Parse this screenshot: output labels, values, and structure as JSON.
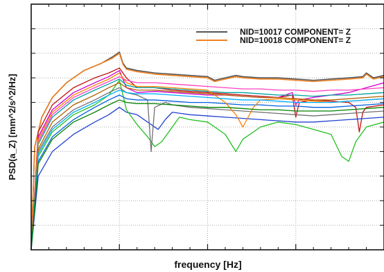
{
  "chart_data": {
    "type": "line",
    "title": "",
    "xlabel": "frequency [Hz]",
    "ylabel": "PSD(a_Z) [mm^2/s^2/Hz]",
    "xlim": [
      0,
      100
    ],
    "ylim": [
      0,
      100
    ],
    "grid": true,
    "legend_position": "top-right",
    "tick_labels_visible": false,
    "x_ticks": [
      25,
      50,
      75
    ],
    "x_minor_ticks": [
      5,
      10,
      15,
      20,
      30,
      35,
      40,
      45,
      55,
      60,
      65,
      70,
      80,
      85,
      90,
      95
    ],
    "y_ticks": [
      10,
      20,
      30,
      40,
      50,
      60,
      70,
      80,
      90
    ],
    "legend": [
      {
        "label": "NID=10017 COMPONENT=  Z",
        "color": "#555555"
      },
      {
        "label": "NID=10018 COMPONENT=  Z",
        "color": "#f08020"
      }
    ],
    "series": [
      {
        "name": "NID=10017 COMPONENT=  Z",
        "color": "#555555",
        "x": [
          0,
          1,
          3,
          6,
          10,
          15,
          20,
          23,
          25,
          26,
          27,
          30,
          35,
          40,
          45,
          50,
          52,
          55,
          58,
          60,
          65,
          70,
          75,
          80,
          85,
          90,
          94,
          95,
          97,
          100
        ],
        "y": [
          0,
          42,
          54,
          62,
          68,
          73,
          76,
          78.5,
          80.5,
          76,
          74,
          73,
          72,
          71.5,
          71,
          70.5,
          69,
          70,
          71,
          70.5,
          70,
          70,
          69.5,
          69,
          69.5,
          70,
          70.5,
          72,
          70,
          71
        ]
      },
      {
        "name": "NID=10018 COMPONENT=  Z",
        "color": "#f08020",
        "x": [
          0,
          1,
          3,
          6,
          10,
          15,
          20,
          23,
          25,
          26,
          27,
          30,
          35,
          40,
          45,
          50,
          52,
          55,
          58,
          60,
          65,
          70,
          75,
          80,
          85,
          90,
          94,
          95,
          97,
          100
        ],
        "y": [
          0,
          42,
          54,
          62,
          68,
          73,
          76,
          78,
          80,
          75.5,
          73.5,
          72.5,
          71.5,
          71,
          70.5,
          70,
          68.5,
          69.5,
          70.5,
          70,
          69.5,
          69.5,
          69,
          68.5,
          69,
          69.5,
          70,
          71.5,
          69.5,
          70.5
        ]
      },
      {
        "color": "#c01010",
        "x": [
          0,
          2,
          6,
          12,
          18,
          22,
          25,
          27,
          30,
          35,
          40,
          45,
          50,
          55,
          60,
          65,
          70,
          74,
          75,
          76,
          80,
          85,
          90,
          92,
          93,
          94,
          95,
          100
        ],
        "y": [
          0,
          48,
          59,
          66,
          70,
          72,
          74,
          70,
          66,
          66,
          65,
          64.5,
          64,
          63.5,
          63,
          62.5,
          62,
          63,
          54,
          60,
          61,
          60.5,
          60,
          58,
          48,
          56,
          58,
          59
        ]
      },
      {
        "color": "#d000d0",
        "x": [
          0,
          2,
          6,
          12,
          18,
          22,
          25,
          27,
          30,
          35,
          40,
          45,
          50,
          55,
          60,
          65,
          70,
          74,
          75,
          76,
          80,
          85,
          90,
          95,
          100
        ],
        "y": [
          0,
          46,
          57,
          64,
          68,
          70.5,
          73,
          66,
          64,
          64.5,
          64,
          63.5,
          63,
          63,
          62.5,
          62,
          62,
          64,
          59,
          61,
          62,
          63,
          64,
          66,
          68
        ]
      },
      {
        "color": "#ff40c0",
        "x": [
          0,
          2,
          6,
          12,
          18,
          22,
          25,
          27,
          30,
          35,
          40,
          45,
          50,
          55,
          60,
          65,
          70,
          75,
          80,
          85,
          90,
          95,
          100
        ],
        "y": [
          0,
          44,
          55,
          62,
          66,
          68.5,
          70.5,
          69,
          68,
          68,
          67.5,
          67,
          66.5,
          66,
          65.5,
          65.5,
          65,
          65,
          64.5,
          65,
          65,
          65.5,
          66
        ]
      },
      {
        "color": "#00a0a0",
        "x": [
          0,
          2,
          6,
          12,
          18,
          22,
          25,
          27,
          30,
          35,
          40,
          45,
          50,
          55,
          60,
          65,
          70,
          75,
          80,
          85,
          90,
          95,
          100
        ],
        "y": [
          0,
          43,
          54,
          61,
          65,
          67.5,
          69.5,
          67,
          66,
          66,
          65.5,
          65,
          64.5,
          64,
          64,
          63.5,
          63,
          63,
          62.5,
          63,
          63,
          63.5,
          64
        ]
      },
      {
        "color": "#2040d0",
        "x": [
          0,
          2,
          6,
          12,
          18,
          22,
          25,
          27,
          30,
          33,
          36,
          38,
          40,
          45,
          50,
          55,
          60,
          65,
          70,
          75,
          80,
          85,
          90,
          95,
          100
        ],
        "y": [
          0,
          30,
          40,
          47,
          52,
          55,
          58,
          56,
          55,
          52,
          49,
          53,
          56,
          55,
          54.5,
          54,
          53.5,
          53,
          52.5,
          52,
          52,
          52.5,
          53,
          53.5,
          54
        ]
      },
      {
        "color": "#20c020",
        "x": [
          0,
          2,
          6,
          12,
          18,
          22,
          24,
          25,
          27,
          30,
          33,
          35,
          37,
          40,
          42,
          45,
          50,
          55,
          58,
          60,
          65,
          70,
          75,
          80,
          85,
          88,
          90,
          92,
          95,
          100
        ],
        "y": [
          0,
          38,
          48,
          55,
          59,
          63,
          67,
          69,
          57,
          51,
          46,
          42,
          44,
          50,
          54,
          53,
          52,
          47,
          40,
          45,
          50,
          52,
          51,
          49,
          47,
          38,
          36,
          44,
          50,
          52
        ]
      },
      {
        "color": "#707070",
        "x": [
          0,
          2,
          6,
          12,
          18,
          22,
          25,
          27,
          30,
          33,
          34,
          35,
          38,
          40,
          45,
          50,
          55,
          60,
          65,
          70,
          75,
          80,
          85,
          90,
          95,
          100
        ],
        "y": [
          0,
          40,
          50,
          57,
          61,
          64,
          66,
          64,
          63,
          61,
          40,
          58,
          60,
          59,
          58,
          57.5,
          57,
          56.5,
          56,
          55.5,
          55,
          54.5,
          55,
          55.5,
          56,
          56.5
        ]
      },
      {
        "color": "#0060e0",
        "x": [
          0,
          2,
          6,
          12,
          18,
          22,
          25,
          27,
          30,
          35,
          40,
          45,
          50,
          55,
          60,
          65,
          70,
          75,
          80,
          85,
          90,
          95,
          100
        ],
        "y": [
          0,
          36,
          46,
          53,
          58,
          61,
          63,
          61.5,
          61,
          61,
          60.5,
          60,
          60,
          59.5,
          59,
          59,
          58.5,
          58.5,
          58,
          58,
          58.5,
          59,
          59.5
        ]
      },
      {
        "color": "#ff8000",
        "x": [
          0,
          2,
          6,
          12,
          18,
          22,
          25,
          27,
          30,
          35,
          40,
          45,
          50,
          52,
          55,
          58,
          60,
          63,
          65,
          70,
          75,
          80,
          85,
          90,
          95,
          100
        ],
        "y": [
          0,
          45,
          56,
          63,
          67,
          69.5,
          72,
          68,
          66.5,
          66.5,
          66,
          65.5,
          65,
          63,
          60,
          55,
          50,
          58,
          61,
          61.5,
          61,
          60.5,
          60,
          60.5,
          61,
          61.5
        ]
      },
      {
        "color": "#b06000",
        "x": [
          0,
          2,
          6,
          12,
          18,
          22,
          25,
          27,
          30,
          35,
          40,
          45,
          50,
          55,
          60,
          65,
          70,
          75,
          80,
          85,
          90,
          95,
          100
        ],
        "y": [
          0,
          41,
          52,
          59,
          63,
          66,
          68,
          66,
          65,
          65,
          64.5,
          64,
          63.5,
          63,
          62.5,
          62,
          62,
          61.5,
          61,
          61,
          61.5,
          62,
          62.5
        ]
      },
      {
        "color": "#00b0ff",
        "x": [
          0,
          2,
          6,
          12,
          18,
          22,
          25,
          27,
          30,
          35,
          40,
          45,
          50,
          55,
          60,
          65,
          70,
          75,
          80,
          85,
          90,
          95,
          100
        ],
        "y": [
          0,
          39,
          49,
          56,
          60,
          63,
          65,
          64,
          63.5,
          63.5,
          63,
          62.5,
          62,
          61.5,
          61,
          61,
          60.5,
          60,
          60,
          60,
          60.5,
          61,
          61.5
        ]
      },
      {
        "color": "#008000",
        "x": [
          0,
          2,
          6,
          12,
          18,
          22,
          25,
          27,
          30,
          35,
          40,
          45,
          50,
          55,
          60,
          65,
          70,
          75,
          80,
          85,
          90,
          95,
          100
        ],
        "y": [
          0,
          35,
          45,
          52,
          56,
          59,
          61,
          60,
          59.5,
          59.5,
          59,
          58.5,
          58,
          58,
          57.5,
          57,
          57,
          56.5,
          56.5,
          56.5,
          57,
          57.5,
          58
        ]
      }
    ]
  }
}
